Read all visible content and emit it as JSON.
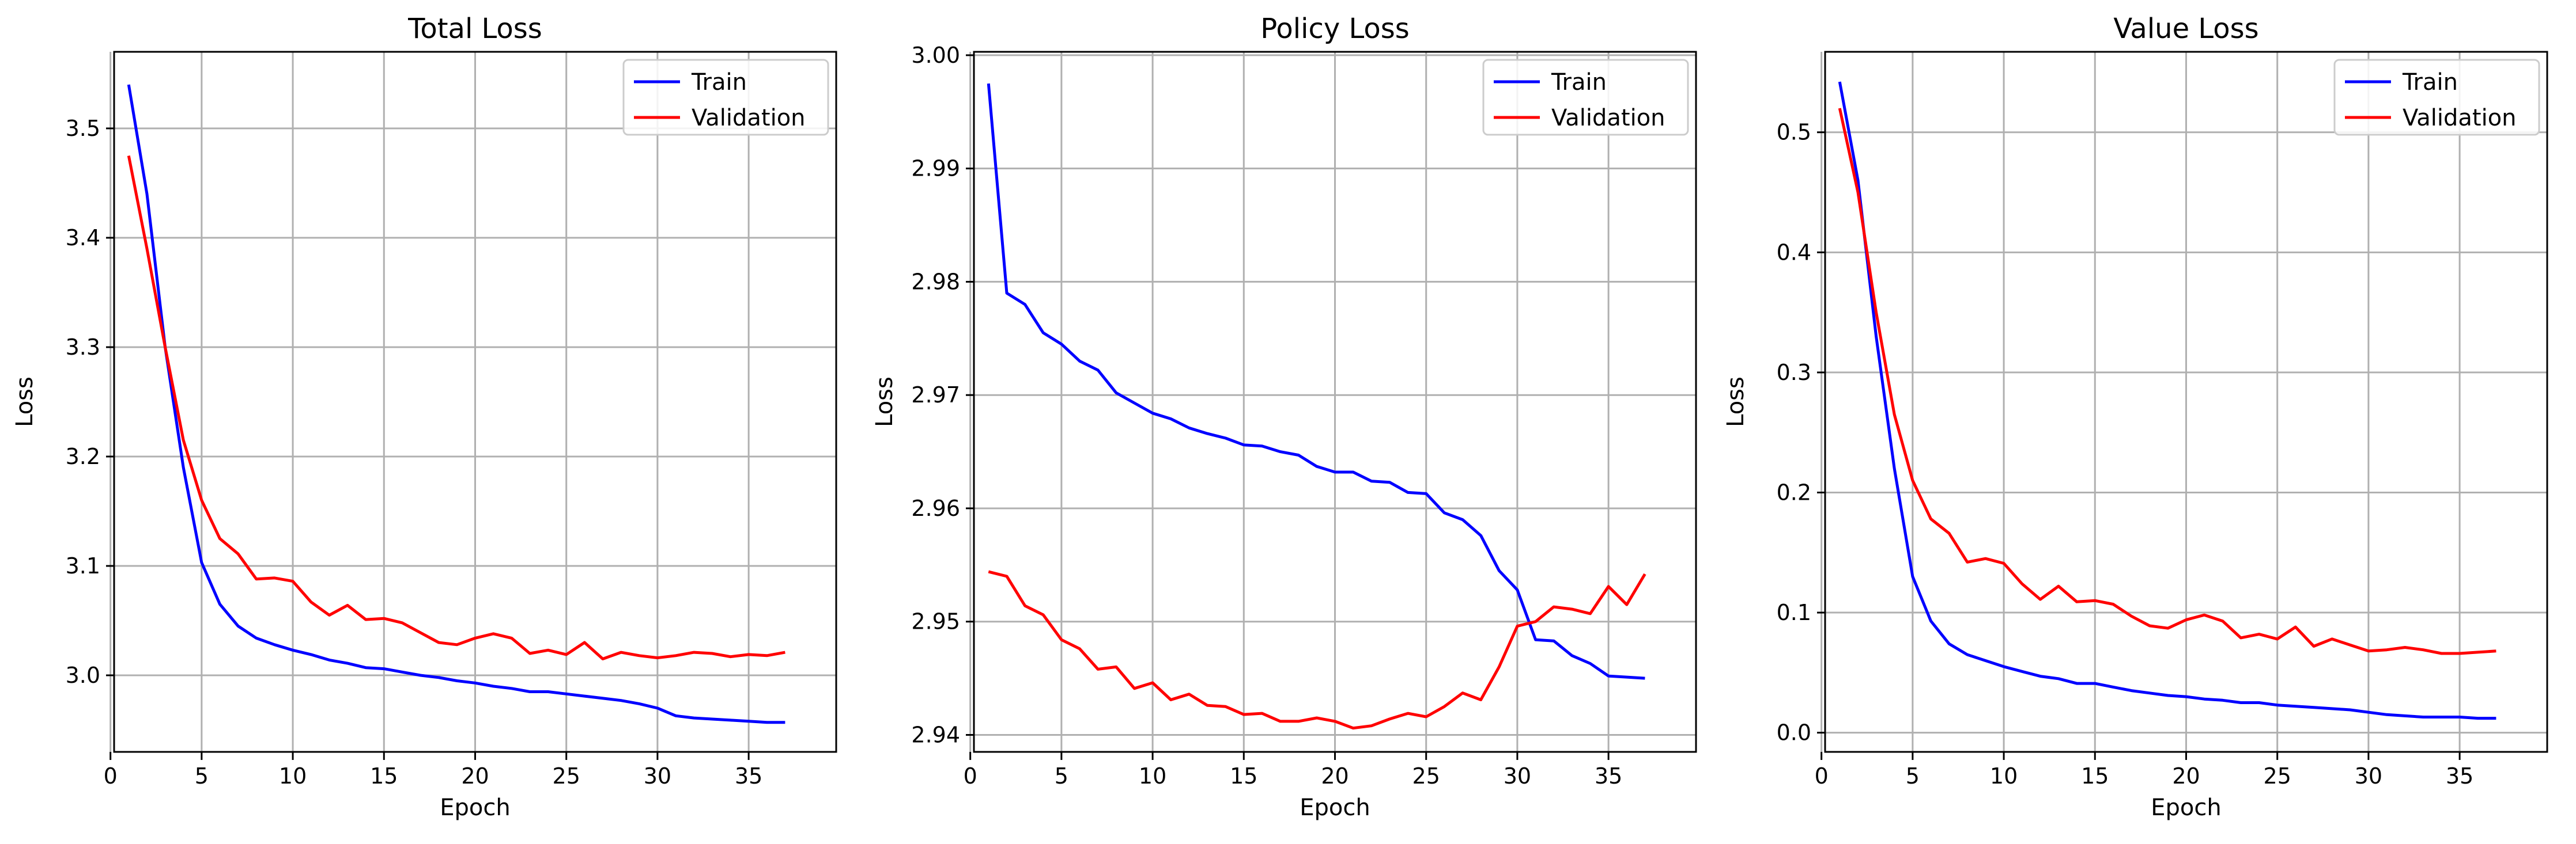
{
  "chart_data": [
    {
      "type": "line",
      "title": "Total Loss",
      "xlabel": "Epoch",
      "ylabel": "Loss",
      "xlim": [
        0.2,
        39.8
      ],
      "ylim": [
        2.93,
        3.57
      ],
      "xticks": [
        "0",
        "5",
        "10",
        "15",
        "20",
        "25",
        "30",
        "35"
      ],
      "yticks": [
        "3.0",
        "3.1",
        "3.2",
        "3.3",
        "3.4",
        "3.5"
      ],
      "grid": true,
      "legend": "top-right",
      "series": [
        {
          "name": "Train",
          "color": "#0000ff",
          "x": [
            1,
            2,
            3,
            4,
            5,
            6,
            7,
            8,
            9,
            10,
            11,
            12,
            13,
            14,
            15,
            16,
            17,
            18,
            19,
            20,
            21,
            22,
            23,
            24,
            25,
            26,
            27,
            28,
            29,
            30,
            31,
            32,
            33,
            34,
            35,
            36,
            37
          ],
          "y": [
            3.54,
            3.44,
            3.3,
            3.19,
            3.103,
            3.065,
            3.045,
            3.034,
            3.028,
            3.023,
            3.019,
            3.014,
            3.011,
            3.007,
            3.006,
            3.003,
            3.0,
            2.998,
            2.995,
            2.993,
            2.99,
            2.988,
            2.985,
            2.985,
            2.983,
            2.981,
            2.979,
            2.977,
            2.974,
            2.97,
            2.963,
            2.961,
            2.96,
            2.959,
            2.958,
            2.957,
            2.957
          ]
        },
        {
          "name": "Validation",
          "color": "#ff0000",
          "x": [
            1,
            2,
            3,
            4,
            5,
            6,
            7,
            8,
            9,
            10,
            11,
            12,
            13,
            14,
            15,
            16,
            17,
            18,
            19,
            20,
            21,
            22,
            23,
            24,
            25,
            26,
            27,
            28,
            29,
            30,
            31,
            32,
            33,
            34,
            35,
            36,
            37
          ],
          "y": [
            3.475,
            3.39,
            3.3,
            3.215,
            3.16,
            3.125,
            3.111,
            3.088,
            3.089,
            3.086,
            3.067,
            3.055,
            3.064,
            3.051,
            3.052,
            3.048,
            3.039,
            3.03,
            3.028,
            3.034,
            3.038,
            3.034,
            3.02,
            3.023,
            3.019,
            3.03,
            3.015,
            3.021,
            3.018,
            3.016,
            3.018,
            3.021,
            3.02,
            3.017,
            3.019,
            3.018,
            3.021
          ]
        }
      ]
    },
    {
      "type": "line",
      "title": "Policy Loss",
      "xlabel": "Epoch",
      "ylabel": "Loss",
      "xlim": [
        0.2,
        39.8
      ],
      "ylim": [
        2.9385,
        3.0003
      ],
      "xticks": [
        "0",
        "5",
        "10",
        "15",
        "20",
        "25",
        "30",
        "35"
      ],
      "yticks": [
        "2.94",
        "2.95",
        "2.96",
        "2.97",
        "2.98",
        "2.99",
        "3.00"
      ],
      "grid": true,
      "legend": "top-right",
      "series": [
        {
          "name": "Train",
          "color": "#0000ff",
          "x": [
            1,
            2,
            3,
            4,
            5,
            6,
            7,
            8,
            9,
            10,
            11,
            12,
            13,
            14,
            15,
            16,
            17,
            18,
            19,
            20,
            21,
            22,
            23,
            24,
            25,
            26,
            27,
            28,
            29,
            30,
            31,
            32,
            33,
            34,
            35,
            36,
            37
          ],
          "y": [
            2.9975,
            2.979,
            2.978,
            2.9755,
            2.9745,
            2.973,
            2.9722,
            2.9702,
            2.9693,
            2.9684,
            2.9679,
            2.9671,
            2.9666,
            2.9662,
            2.9656,
            2.9655,
            2.965,
            2.9647,
            2.9637,
            2.9632,
            2.9632,
            2.9624,
            2.9623,
            2.9614,
            2.9613,
            2.9596,
            2.959,
            2.9576,
            2.9545,
            2.9528,
            2.9484,
            2.9483,
            2.947,
            2.9463,
            2.9452,
            2.9451,
            2.945
          ]
        },
        {
          "name": "Validation",
          "color": "#ff0000",
          "x": [
            1,
            2,
            3,
            4,
            5,
            6,
            7,
            8,
            9,
            10,
            11,
            12,
            13,
            14,
            15,
            16,
            17,
            18,
            19,
            20,
            21,
            22,
            23,
            24,
            25,
            26,
            27,
            28,
            29,
            30,
            31,
            32,
            33,
            34,
            35,
            36,
            37
          ],
          "y": [
            2.9544,
            2.954,
            2.9514,
            2.9506,
            2.9484,
            2.9476,
            2.9458,
            2.946,
            2.9441,
            2.9446,
            2.9431,
            2.9436,
            2.9426,
            2.9425,
            2.9418,
            2.9419,
            2.9412,
            2.9412,
            2.9415,
            2.9412,
            2.9406,
            2.9408,
            2.9414,
            2.9419,
            2.9416,
            2.9425,
            2.9437,
            2.9431,
            2.946,
            2.9496,
            2.95,
            2.9513,
            2.9511,
            2.9507,
            2.9531,
            2.9515,
            2.9542
          ]
        }
      ]
    },
    {
      "type": "line",
      "title": "Value Loss",
      "xlabel": "Epoch",
      "ylabel": "Loss",
      "xlim": [
        0.2,
        39.8
      ],
      "ylim": [
        -0.016,
        0.567
      ],
      "xticks": [
        "0",
        "5",
        "10",
        "15",
        "20",
        "25",
        "30",
        "35"
      ],
      "yticks": [
        "0.0",
        "0.1",
        "0.2",
        "0.3",
        "0.4",
        "0.5"
      ],
      "grid": true,
      "legend": "top-right",
      "series": [
        {
          "name": "Train",
          "color": "#0000ff",
          "x": [
            1,
            2,
            3,
            4,
            5,
            6,
            7,
            8,
            9,
            10,
            11,
            12,
            13,
            14,
            15,
            16,
            17,
            18,
            19,
            20,
            21,
            22,
            23,
            24,
            25,
            26,
            27,
            28,
            29,
            30,
            31,
            32,
            33,
            34,
            35,
            36,
            37
          ],
          "y": [
            0.542,
            0.46,
            0.33,
            0.22,
            0.13,
            0.093,
            0.074,
            0.065,
            0.06,
            0.055,
            0.051,
            0.047,
            0.045,
            0.041,
            0.041,
            0.038,
            0.035,
            0.033,
            0.031,
            0.03,
            0.028,
            0.027,
            0.025,
            0.025,
            0.023,
            0.022,
            0.021,
            0.02,
            0.019,
            0.017,
            0.015,
            0.014,
            0.013,
            0.013,
            0.013,
            0.012,
            0.012
          ]
        },
        {
          "name": "Validation",
          "color": "#ff0000",
          "x": [
            1,
            2,
            3,
            4,
            5,
            6,
            7,
            8,
            9,
            10,
            11,
            12,
            13,
            14,
            15,
            16,
            17,
            18,
            19,
            20,
            21,
            22,
            23,
            24,
            25,
            26,
            27,
            28,
            29,
            30,
            31,
            32,
            33,
            34,
            35,
            36,
            37
          ],
          "y": [
            0.52,
            0.45,
            0.35,
            0.265,
            0.21,
            0.178,
            0.166,
            0.142,
            0.145,
            0.141,
            0.124,
            0.111,
            0.122,
            0.109,
            0.11,
            0.107,
            0.097,
            0.089,
            0.087,
            0.094,
            0.098,
            0.093,
            0.079,
            0.082,
            0.078,
            0.088,
            0.072,
            0.078,
            0.073,
            0.068,
            0.069,
            0.071,
            0.069,
            0.066,
            0.066,
            0.067,
            0.068
          ]
        }
      ]
    }
  ]
}
